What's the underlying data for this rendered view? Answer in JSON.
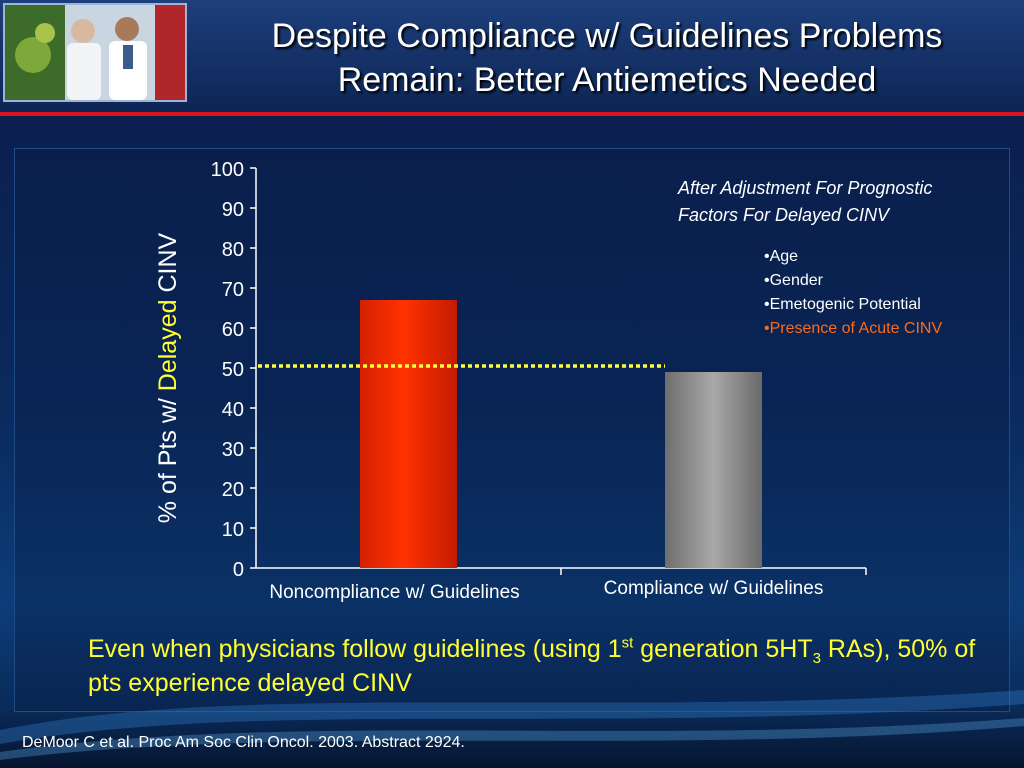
{
  "slide": {
    "title_line1": "Despite Compliance w/ Guidelines Problems",
    "title_line2": "Remain: Better Antiemetics Needed"
  },
  "colors": {
    "header_accent": "#d7141b",
    "bar_noncompliance": "#ff3300",
    "bar_compliance": "#8a8a8a",
    "reference_line": "#ffff33",
    "conclusion_text": "#ffff33",
    "highlight_factor": "#ff6a1a"
  },
  "icons": {
    "header_photo": "physician-patient-photo"
  },
  "chart_data": {
    "type": "bar",
    "categories": [
      "Noncompliance w/ Guidelines",
      "Compliance w/ Guidelines"
    ],
    "values": [
      67,
      49
    ],
    "ylabel_parts": [
      "% of Pts w/ ",
      "Delayed",
      " CINV"
    ],
    "ylim": [
      0,
      100
    ],
    "yticks": [
      0,
      10,
      20,
      30,
      40,
      50,
      60,
      70,
      80,
      90,
      100
    ],
    "reference_line": {
      "y": 50,
      "style": "dotted"
    },
    "grid": false,
    "legend": "none"
  },
  "annotation": {
    "line1": "After Adjustment For Prognostic",
    "line2": "Factors For Delayed CINV",
    "factors": [
      "•Age",
      "•Gender",
      "•Emetogenic Potential",
      "•Presence of Acute CINV"
    ]
  },
  "conclusion": {
    "part1": "Even when physicians follow guidelines (using 1",
    "sup": "st",
    "part2": " generation 5HT",
    "sub": "3",
    "part3": " RAs), 50% of pts experience delayed CINV"
  },
  "citation": "DeMoor C et al. Proc Am Soc Clin Oncol. 2003. Abstract 2924."
}
